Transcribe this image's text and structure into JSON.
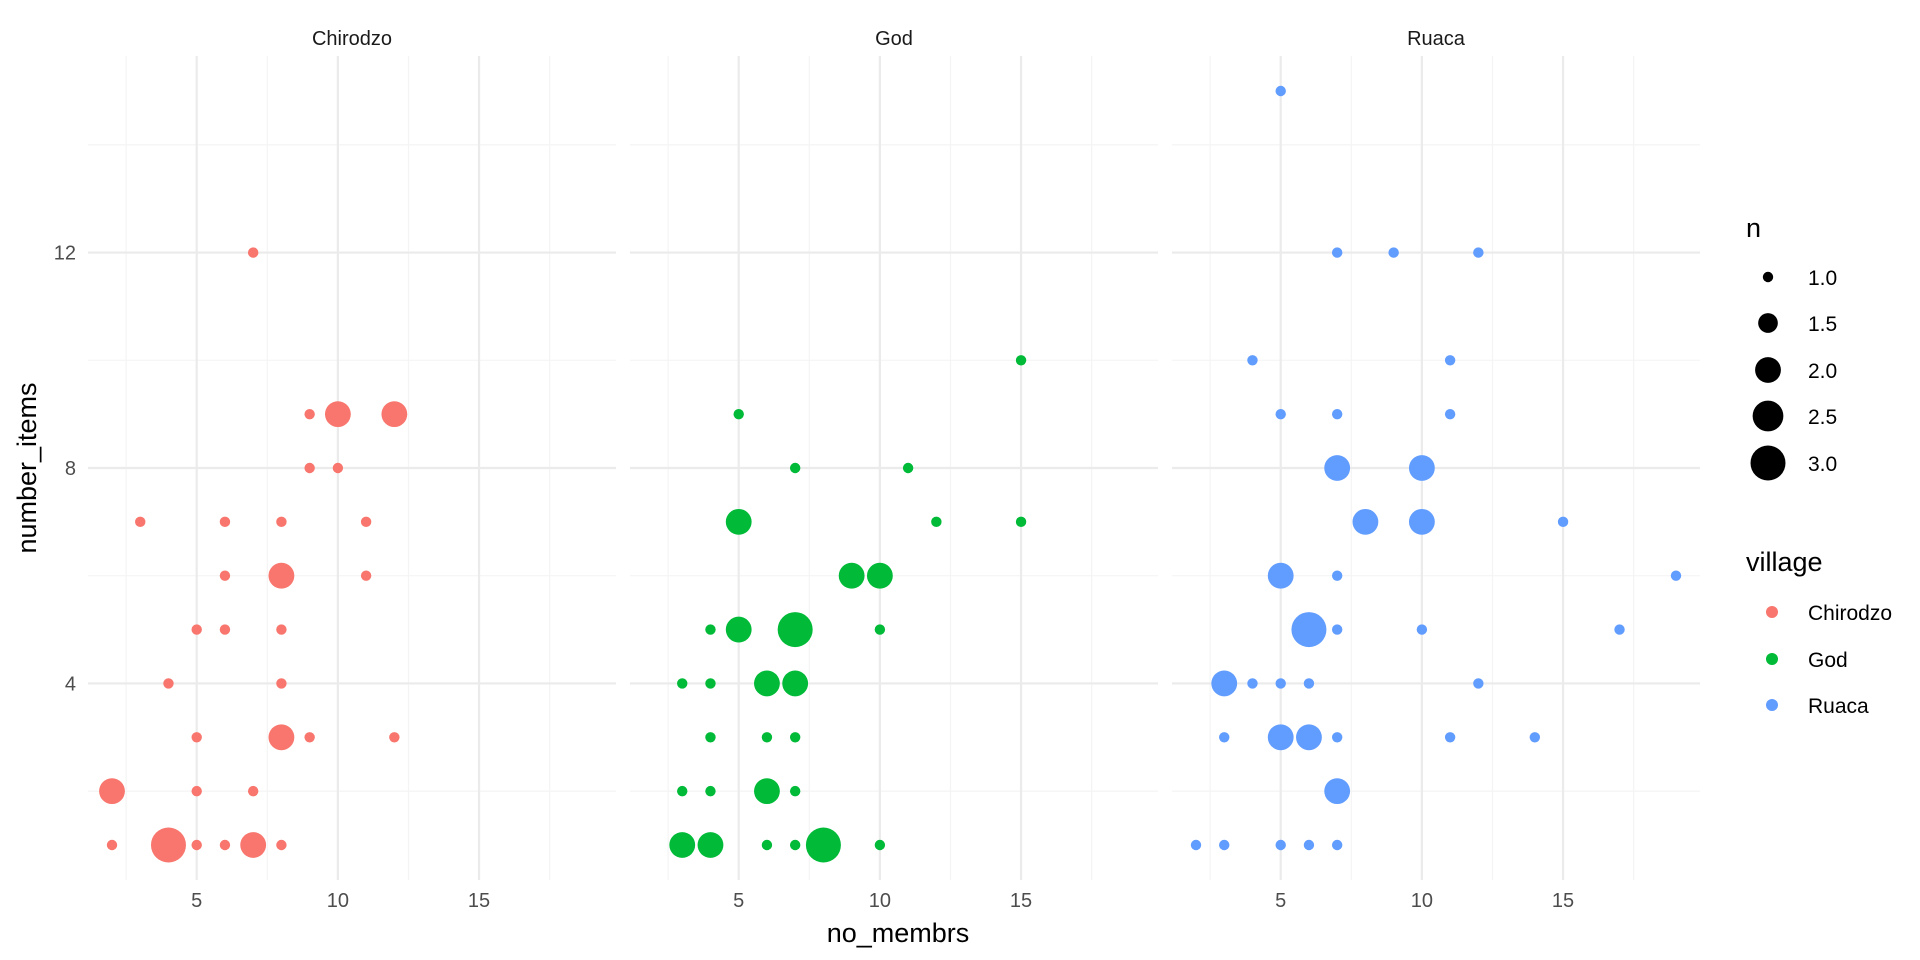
{
  "chart_data": {
    "type": "scatter",
    "xlabel": "no_membrs",
    "ylabel": "number_items",
    "xlim": [
      1.15,
      19.85
    ],
    "ylim": [
      0.35,
      15.65
    ],
    "x_ticks": [
      5,
      10,
      15
    ],
    "y_ticks": [
      4,
      8,
      12
    ],
    "grid": true,
    "size_legend": {
      "title": "n",
      "values": [
        1.0,
        1.5,
        2.0,
        2.5,
        3.0
      ],
      "labels": [
        "1.0",
        "1.5",
        "2.0",
        "2.5",
        "3.0"
      ]
    },
    "color_legend": {
      "title": "village",
      "placement": "right",
      "entries": [
        {
          "label": "Chirodzo",
          "color": "#F8766D"
        },
        {
          "label": "God",
          "color": "#00BA38"
        },
        {
          "label": "Ruaca",
          "color": "#619CFF"
        }
      ]
    },
    "facets": [
      {
        "label": "Chirodzo",
        "color": "#F8766D",
        "points": [
          [
            7,
            12,
            1
          ],
          [
            9,
            9,
            1
          ],
          [
            10,
            9,
            2
          ],
          [
            12,
            9,
            2
          ],
          [
            9,
            8,
            1
          ],
          [
            10,
            8,
            1
          ],
          [
            3,
            7,
            1
          ],
          [
            6,
            7,
            1
          ],
          [
            8,
            7,
            1
          ],
          [
            11,
            7,
            1
          ],
          [
            6,
            6,
            1
          ],
          [
            8,
            6,
            2
          ],
          [
            11,
            6,
            1
          ],
          [
            5,
            5,
            1
          ],
          [
            6,
            5,
            1
          ],
          [
            8,
            5,
            1
          ],
          [
            4,
            4,
            1
          ],
          [
            8,
            4,
            1
          ],
          [
            5,
            3,
            1
          ],
          [
            8,
            3,
            2
          ],
          [
            9,
            3,
            1
          ],
          [
            12,
            3,
            1
          ],
          [
            2,
            2,
            2
          ],
          [
            5,
            2,
            1
          ],
          [
            7,
            2,
            1
          ],
          [
            2,
            1,
            1
          ],
          [
            4,
            1,
            3
          ],
          [
            5,
            1,
            1
          ],
          [
            6,
            1,
            1
          ],
          [
            7,
            1,
            2
          ],
          [
            8,
            1,
            1
          ]
        ]
      },
      {
        "label": "God",
        "color": "#00BA38",
        "points": [
          [
            15,
            10,
            1
          ],
          [
            5,
            9,
            1
          ],
          [
            7,
            8,
            1
          ],
          [
            11,
            8,
            1
          ],
          [
            5,
            7,
            2
          ],
          [
            12,
            7,
            1
          ],
          [
            15,
            7,
            1
          ],
          [
            9,
            6,
            2
          ],
          [
            10,
            6,
            2
          ],
          [
            4,
            5,
            1
          ],
          [
            5,
            5,
            2
          ],
          [
            7,
            5,
            3
          ],
          [
            10,
            5,
            1
          ],
          [
            3,
            4,
            1
          ],
          [
            4,
            4,
            1
          ],
          [
            6,
            4,
            2
          ],
          [
            7,
            4,
            2
          ],
          [
            4,
            3,
            1
          ],
          [
            6,
            3,
            1
          ],
          [
            7,
            3,
            1
          ],
          [
            3,
            2,
            1
          ],
          [
            4,
            2,
            1
          ],
          [
            6,
            2,
            2
          ],
          [
            7,
            2,
            1
          ],
          [
            3,
            1,
            2
          ],
          [
            4,
            1,
            2
          ],
          [
            6,
            1,
            1
          ],
          [
            7,
            1,
            1
          ],
          [
            8,
            1,
            3
          ],
          [
            10,
            1,
            1
          ]
        ]
      },
      {
        "label": "Ruaca",
        "color": "#619CFF",
        "points": [
          [
            5,
            15,
            1
          ],
          [
            7,
            12,
            1
          ],
          [
            9,
            12,
            1
          ],
          [
            12,
            12,
            1
          ],
          [
            4,
            10,
            1
          ],
          [
            11,
            10,
            1
          ],
          [
            5,
            9,
            1
          ],
          [
            7,
            9,
            1
          ],
          [
            11,
            9,
            1
          ],
          [
            7,
            8,
            2
          ],
          [
            10,
            8,
            2
          ],
          [
            8,
            7,
            2
          ],
          [
            10,
            7,
            2
          ],
          [
            15,
            7,
            1
          ],
          [
            5,
            6,
            2
          ],
          [
            7,
            6,
            1
          ],
          [
            19,
            6,
            1
          ],
          [
            6,
            5,
            3
          ],
          [
            7,
            5,
            1
          ],
          [
            10,
            5,
            1
          ],
          [
            17,
            5,
            1
          ],
          [
            3,
            4,
            2
          ],
          [
            4,
            4,
            1
          ],
          [
            5,
            4,
            1
          ],
          [
            6,
            4,
            1
          ],
          [
            12,
            4,
            1
          ],
          [
            3,
            3,
            1
          ],
          [
            5,
            3,
            2
          ],
          [
            6,
            3,
            2
          ],
          [
            7,
            3,
            1
          ],
          [
            11,
            3,
            1
          ],
          [
            14,
            3,
            1
          ],
          [
            7,
            2,
            2
          ],
          [
            2,
            1,
            1
          ],
          [
            3,
            1,
            1
          ],
          [
            5,
            1,
            1
          ],
          [
            6,
            1,
            1
          ],
          [
            7,
            1,
            1
          ]
        ]
      }
    ]
  }
}
